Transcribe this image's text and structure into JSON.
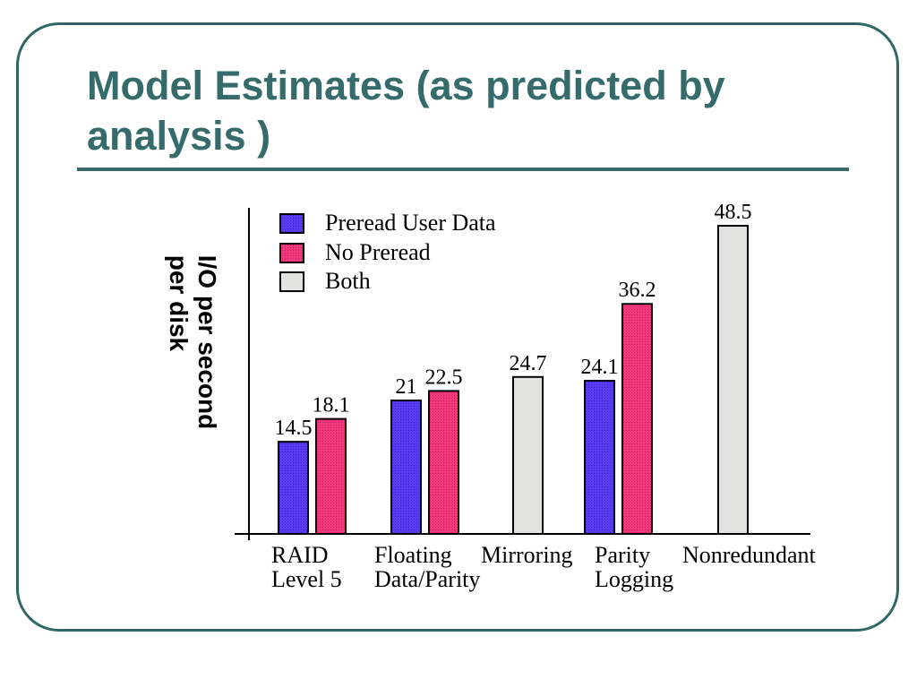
{
  "slide": {
    "title": "Model Estimates (as predicted by analysis )"
  },
  "colors": {
    "frame": "#2f6666",
    "title": "#356b6b",
    "preread_user_data": "#5a3cf0",
    "no_preread": "#f0387e",
    "both": "#e2e2e0"
  },
  "chart_data": {
    "type": "bar",
    "ylabel_lines": [
      "I/O per second",
      "per disk"
    ],
    "xlabel": "",
    "ylim": [
      0,
      50
    ],
    "grid": false,
    "legend_position": "top-left",
    "series": [
      {
        "name": "Preread User Data",
        "color": "#5a3cf0"
      },
      {
        "name": "No Preread",
        "color": "#f0387e"
      },
      {
        "name": "Both",
        "color": "#e2e2e0"
      }
    ],
    "groups": [
      {
        "label_lines": [
          "RAID",
          "Level 5"
        ],
        "bars": [
          {
            "series": "Preread User Data",
            "value": 14.5,
            "label": "14.5"
          },
          {
            "series": "No Preread",
            "value": 18.1,
            "label": "18.1"
          }
        ]
      },
      {
        "label_lines": [
          "Floating",
          "Data/Parity"
        ],
        "bars": [
          {
            "series": "Preread User Data",
            "value": 21,
            "label": "21"
          },
          {
            "series": "No Preread",
            "value": 22.5,
            "label": "22.5"
          }
        ]
      },
      {
        "label_lines": [
          "Mirroring"
        ],
        "bars": [
          {
            "series": "Both",
            "value": 24.7,
            "label": "24.7"
          }
        ]
      },
      {
        "label_lines": [
          "Parity",
          "Logging"
        ],
        "bars": [
          {
            "series": "Preread User Data",
            "value": 24.1,
            "label": "24.1"
          },
          {
            "series": "No Preread",
            "value": 36.2,
            "label": "36.2"
          }
        ]
      },
      {
        "label_lines": [
          "Nonredundant"
        ],
        "bars": [
          {
            "series": "Both",
            "value": 48.5,
            "label": "48.5"
          }
        ]
      }
    ]
  }
}
